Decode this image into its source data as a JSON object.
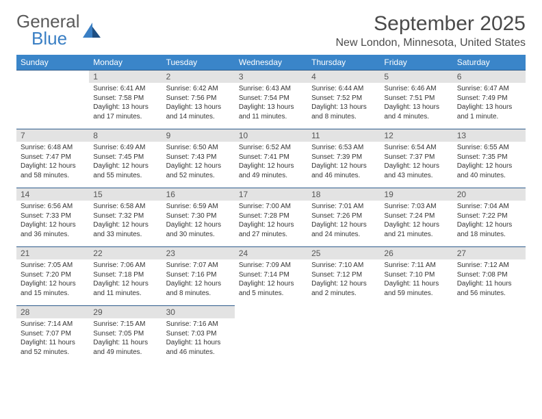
{
  "logo": {
    "line1": "General",
    "line2": "Blue"
  },
  "title": "September 2025",
  "location": "New London, Minnesota, United States",
  "colors": {
    "header_bg": "#3a85c9",
    "header_text": "#ffffff",
    "daynum_bg": "#e3e3e3",
    "border": "#2c5a8a",
    "logo_blue": "#3a7fc4",
    "text": "#333333"
  },
  "day_headers": [
    "Sunday",
    "Monday",
    "Tuesday",
    "Wednesday",
    "Thursday",
    "Friday",
    "Saturday"
  ],
  "weeks": [
    [
      null,
      {
        "n": "1",
        "sr": "6:41 AM",
        "ss": "7:58 PM",
        "dl": "13 hours and 17 minutes."
      },
      {
        "n": "2",
        "sr": "6:42 AM",
        "ss": "7:56 PM",
        "dl": "13 hours and 14 minutes."
      },
      {
        "n": "3",
        "sr": "6:43 AM",
        "ss": "7:54 PM",
        "dl": "13 hours and 11 minutes."
      },
      {
        "n": "4",
        "sr": "6:44 AM",
        "ss": "7:52 PM",
        "dl": "13 hours and 8 minutes."
      },
      {
        "n": "5",
        "sr": "6:46 AM",
        "ss": "7:51 PM",
        "dl": "13 hours and 4 minutes."
      },
      {
        "n": "6",
        "sr": "6:47 AM",
        "ss": "7:49 PM",
        "dl": "13 hours and 1 minute."
      }
    ],
    [
      {
        "n": "7",
        "sr": "6:48 AM",
        "ss": "7:47 PM",
        "dl": "12 hours and 58 minutes."
      },
      {
        "n": "8",
        "sr": "6:49 AM",
        "ss": "7:45 PM",
        "dl": "12 hours and 55 minutes."
      },
      {
        "n": "9",
        "sr": "6:50 AM",
        "ss": "7:43 PM",
        "dl": "12 hours and 52 minutes."
      },
      {
        "n": "10",
        "sr": "6:52 AM",
        "ss": "7:41 PM",
        "dl": "12 hours and 49 minutes."
      },
      {
        "n": "11",
        "sr": "6:53 AM",
        "ss": "7:39 PM",
        "dl": "12 hours and 46 minutes."
      },
      {
        "n": "12",
        "sr": "6:54 AM",
        "ss": "7:37 PM",
        "dl": "12 hours and 43 minutes."
      },
      {
        "n": "13",
        "sr": "6:55 AM",
        "ss": "7:35 PM",
        "dl": "12 hours and 40 minutes."
      }
    ],
    [
      {
        "n": "14",
        "sr": "6:56 AM",
        "ss": "7:33 PM",
        "dl": "12 hours and 36 minutes."
      },
      {
        "n": "15",
        "sr": "6:58 AM",
        "ss": "7:32 PM",
        "dl": "12 hours and 33 minutes."
      },
      {
        "n": "16",
        "sr": "6:59 AM",
        "ss": "7:30 PM",
        "dl": "12 hours and 30 minutes."
      },
      {
        "n": "17",
        "sr": "7:00 AM",
        "ss": "7:28 PM",
        "dl": "12 hours and 27 minutes."
      },
      {
        "n": "18",
        "sr": "7:01 AM",
        "ss": "7:26 PM",
        "dl": "12 hours and 24 minutes."
      },
      {
        "n": "19",
        "sr": "7:03 AM",
        "ss": "7:24 PM",
        "dl": "12 hours and 21 minutes."
      },
      {
        "n": "20",
        "sr": "7:04 AM",
        "ss": "7:22 PM",
        "dl": "12 hours and 18 minutes."
      }
    ],
    [
      {
        "n": "21",
        "sr": "7:05 AM",
        "ss": "7:20 PM",
        "dl": "12 hours and 15 minutes."
      },
      {
        "n": "22",
        "sr": "7:06 AM",
        "ss": "7:18 PM",
        "dl": "12 hours and 11 minutes."
      },
      {
        "n": "23",
        "sr": "7:07 AM",
        "ss": "7:16 PM",
        "dl": "12 hours and 8 minutes."
      },
      {
        "n": "24",
        "sr": "7:09 AM",
        "ss": "7:14 PM",
        "dl": "12 hours and 5 minutes."
      },
      {
        "n": "25",
        "sr": "7:10 AM",
        "ss": "7:12 PM",
        "dl": "12 hours and 2 minutes."
      },
      {
        "n": "26",
        "sr": "7:11 AM",
        "ss": "7:10 PM",
        "dl": "11 hours and 59 minutes."
      },
      {
        "n": "27",
        "sr": "7:12 AM",
        "ss": "7:08 PM",
        "dl": "11 hours and 56 minutes."
      }
    ],
    [
      {
        "n": "28",
        "sr": "7:14 AM",
        "ss": "7:07 PM",
        "dl": "11 hours and 52 minutes."
      },
      {
        "n": "29",
        "sr": "7:15 AM",
        "ss": "7:05 PM",
        "dl": "11 hours and 49 minutes."
      },
      {
        "n": "30",
        "sr": "7:16 AM",
        "ss": "7:03 PM",
        "dl": "11 hours and 46 minutes."
      },
      null,
      null,
      null,
      null
    ]
  ],
  "labels": {
    "sunrise": "Sunrise:",
    "sunset": "Sunset:",
    "daylight": "Daylight:"
  }
}
